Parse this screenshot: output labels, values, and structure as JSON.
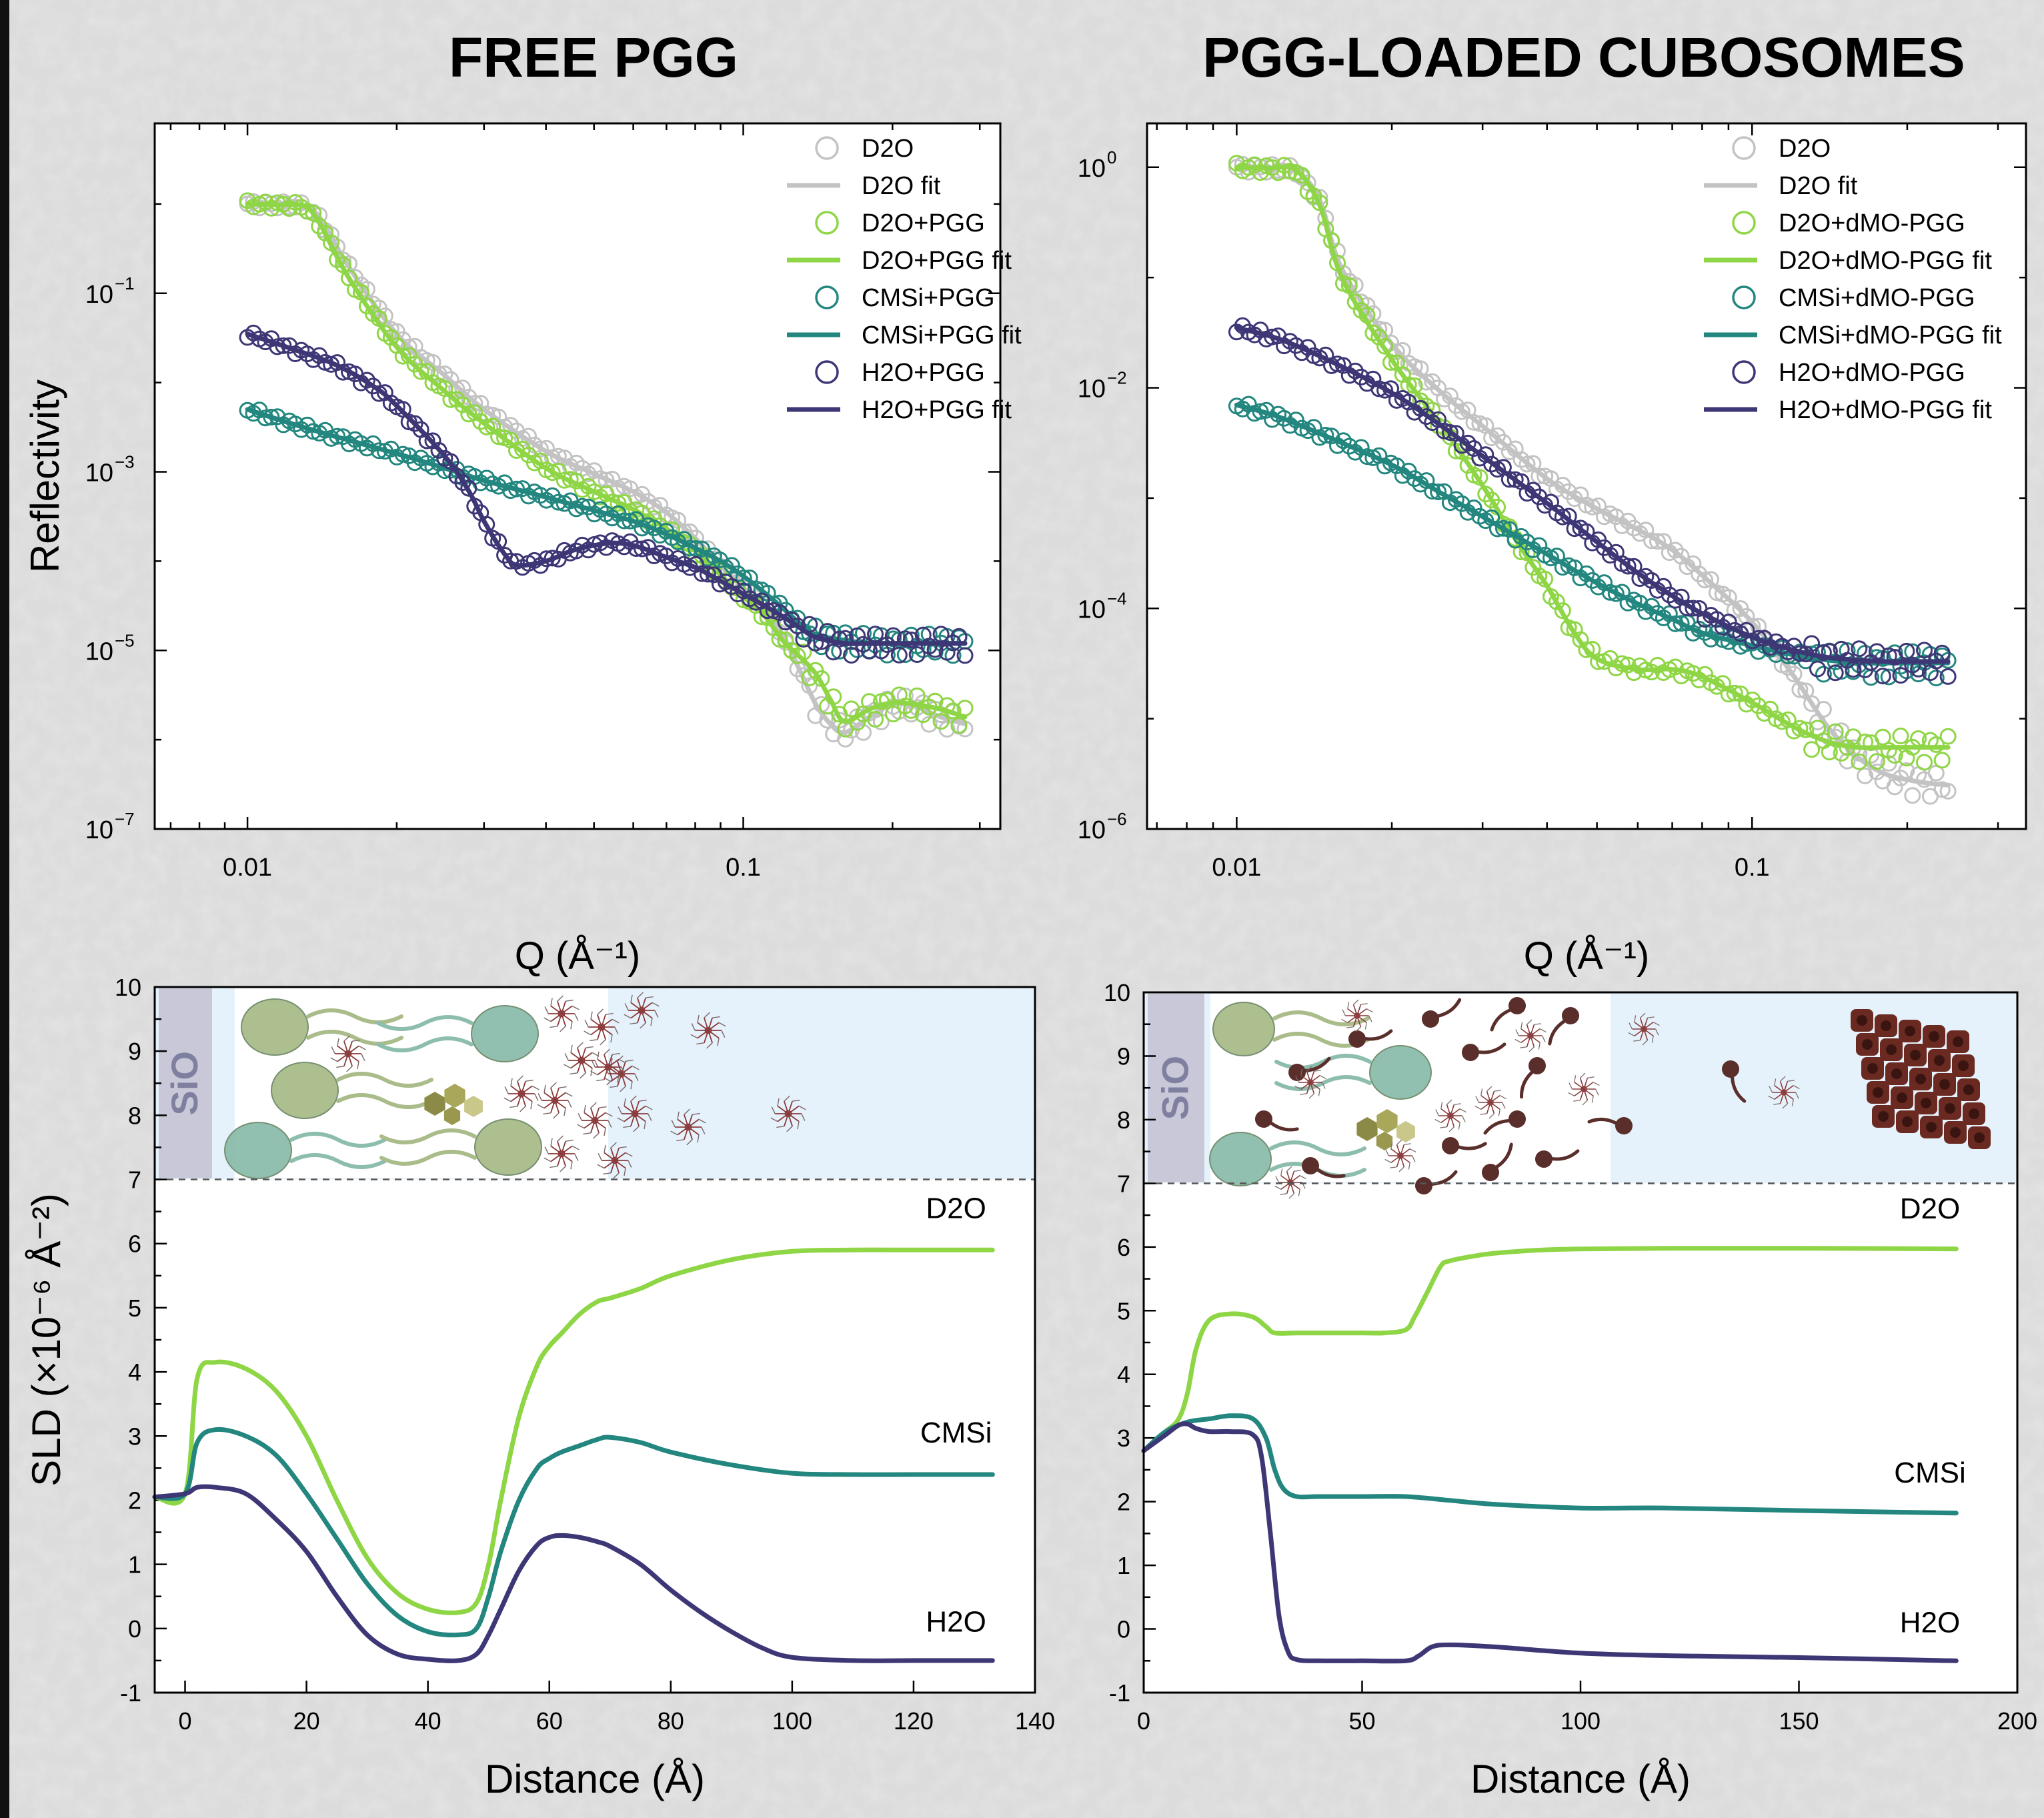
{
  "panel_titles": [
    "FREE PGG",
    "PGG-LOADED CUBOSOMES"
  ],
  "colors": {
    "d2o": "#c3c3c3",
    "d2o_pgg": "#8fd646",
    "cmsi": "#23877f",
    "h2o": "#3d3776",
    "sio2": "#c8c8d8",
    "sio2_text": "#7f7f9f",
    "lipid_green": "#a9bc8a",
    "lipid_teal": "#8cbdad",
    "pgg_red": "#8a3a3a",
    "dmo_brown": "#5a2e2a",
    "water": "#e6f2fb",
    "cube": "#6a2a22"
  },
  "chart_data": [
    {
      "type": "scatter",
      "title": "FREE PGG",
      "xlabel": "Q (Å⁻¹)",
      "ylabel": "Reflectivity",
      "xscale": "log",
      "yscale": "log",
      "xlim": [
        0.0065,
        0.33
      ],
      "ylim": [
        1e-07,
        8
      ],
      "xticks": [
        {
          "value": 0.01,
          "label": "0.01"
        },
        {
          "value": 0.1,
          "label": "0.1"
        }
      ],
      "yticks": [
        {
          "exp": -1,
          "base": "10",
          "sup": "−1"
        },
        {
          "exp": -3,
          "base": "10",
          "sup": "−3"
        },
        {
          "exp": -5,
          "base": "10",
          "sup": "−5"
        },
        {
          "exp": -7,
          "base": "10",
          "sup": "−7"
        }
      ],
      "legend_position": "top-right",
      "legend": [
        {
          "label": "D2O",
          "color": "d2o",
          "kind": "marker"
        },
        {
          "label": "D2O fit",
          "color": "d2o",
          "kind": "line"
        },
        {
          "label": "D2O+PGG",
          "color": "d2o_pgg",
          "kind": "marker"
        },
        {
          "label": "D2O+PGG fit",
          "color": "d2o_pgg",
          "kind": "line"
        },
        {
          "label": "CMSi+PGG",
          "color": "cmsi",
          "kind": "marker"
        },
        {
          "label": "CMSi+PGG fit",
          "color": "cmsi",
          "kind": "line"
        },
        {
          "label": "H2O+PGG",
          "color": "h2o",
          "kind": "marker"
        },
        {
          "label": "H2O+PGG fit",
          "color": "h2o",
          "kind": "line"
        }
      ],
      "series": [
        {
          "name": "D2O",
          "color": "d2o",
          "x": [
            0.01,
            0.0115,
            0.013,
            0.014,
            0.016,
            0.02,
            0.025,
            0.03,
            0.04,
            0.05,
            0.06,
            0.07,
            0.08,
            0.09,
            0.1,
            0.11,
            0.12,
            0.13,
            0.14,
            0.15,
            0.16,
            0.18,
            0.2,
            0.22,
            0.25,
            0.28
          ],
          "y": [
            1.0,
            0.98,
            0.95,
            0.7,
            0.2,
            0.035,
            0.012,
            0.005,
            0.0017,
            0.00095,
            0.0006,
            0.00035,
            0.00018,
            9e-05,
            5e-05,
            3e-05,
            1.5e-05,
            6e-06,
            2.5e-06,
            1.5e-06,
            1.2e-06,
            1.8e-06,
            2.5e-06,
            2.4e-06,
            1.8e-06,
            1.5e-06
          ]
        },
        {
          "name": "D2O+PGG",
          "color": "d2o_pgg",
          "x": [
            0.01,
            0.0115,
            0.013,
            0.014,
            0.016,
            0.02,
            0.025,
            0.03,
            0.04,
            0.05,
            0.06,
            0.07,
            0.08,
            0.09,
            0.1,
            0.11,
            0.12,
            0.13,
            0.14,
            0.15,
            0.16,
            0.18,
            0.2,
            0.22,
            0.25,
            0.28
          ],
          "y": [
            1.0,
            0.98,
            0.95,
            0.6,
            0.15,
            0.025,
            0.008,
            0.0035,
            0.0011,
            0.0006,
            0.00038,
            0.00023,
            0.00013,
            7e-05,
            4e-05,
            2.5e-05,
            1.3e-05,
            8.5e-06,
            5.5e-06,
            2.8e-06,
            1.6e-06,
            2.2e-06,
            2.6e-06,
            2.5e-06,
            2.2e-06,
            1.8e-06
          ]
        },
        {
          "name": "CMSi+PGG",
          "color": "cmsi",
          "x": [
            0.01,
            0.012,
            0.015,
            0.02,
            0.025,
            0.03,
            0.04,
            0.05,
            0.06,
            0.07,
            0.08,
            0.09,
            0.1,
            0.11,
            0.12,
            0.13,
            0.14,
            0.16,
            0.18,
            0.2,
            0.22,
            0.25,
            0.28
          ],
          "y": [
            0.005,
            0.0036,
            0.0025,
            0.0016,
            0.0011,
            0.0008,
            0.00052,
            0.00037,
            0.00028,
            0.0002,
            0.00014,
            0.0001,
            6.8e-05,
            4.5e-05,
            3e-05,
            2e-05,
            1.5e-05,
            1.3e-05,
            1.2e-05,
            1.2e-05,
            1.2e-05,
            1.2e-05,
            1.2e-05
          ]
        },
        {
          "name": "H2O+PGG",
          "color": "h2o",
          "x": [
            0.01,
            0.012,
            0.015,
            0.018,
            0.02,
            0.025,
            0.028,
            0.03,
            0.033,
            0.035,
            0.04,
            0.045,
            0.05,
            0.055,
            0.06,
            0.065,
            0.07,
            0.08,
            0.09,
            0.1,
            0.11,
            0.12,
            0.13,
            0.14,
            0.16,
            0.18,
            0.2,
            0.22,
            0.25,
            0.28
          ],
          "y": [
            0.035,
            0.025,
            0.016,
            0.009,
            0.0055,
            0.0015,
            0.0006,
            0.00028,
            0.00012,
            9e-05,
            0.0001,
            0.00013,
            0.00015,
            0.00016,
            0.00015,
            0.00013,
            0.00011,
            8.5e-05,
            6e-05,
            4.3e-05,
            3.2e-05,
            2.4e-05,
            1.8e-05,
            1.4e-05,
            1.2e-05,
            1.2e-05,
            1.2e-05,
            1.2e-05,
            1.2e-05,
            1.2e-05
          ]
        }
      ]
    },
    {
      "type": "scatter",
      "title": "PGG-LOADED CUBOSOMES",
      "xlabel": "Q (Å⁻¹)",
      "ylabel": "",
      "xscale": "log",
      "yscale": "log",
      "xlim": [
        0.0067,
        0.34
      ],
      "ylim": [
        1e-06,
        2.5
      ],
      "xticks": [
        {
          "value": 0.01,
          "label": "0.01"
        },
        {
          "value": 0.1,
          "label": "0.1"
        }
      ],
      "yticks": [
        {
          "exp": 0,
          "base": "10",
          "sup": "0"
        },
        {
          "exp": -2,
          "base": "10",
          "sup": "−2"
        },
        {
          "exp": -4,
          "base": "10",
          "sup": "−4"
        },
        {
          "exp": -6,
          "base": "10",
          "sup": "−6"
        }
      ],
      "legend_position": "top-right",
      "legend": [
        {
          "label": "D2O",
          "color": "d2o",
          "kind": "marker"
        },
        {
          "label": "D2O fit",
          "color": "d2o",
          "kind": "line"
        },
        {
          "label": "D2O+dMO-PGG",
          "color": "d2o_pgg",
          "kind": "marker"
        },
        {
          "label": "D2O+dMO-PGG fit",
          "color": "d2o_pgg",
          "kind": "line"
        },
        {
          "label": "CMSi+dMO-PGG",
          "color": "cmsi",
          "kind": "marker"
        },
        {
          "label": "CMSi+dMO-PGG fit",
          "color": "cmsi",
          "kind": "line"
        },
        {
          "label": "H2O+dMO-PGG",
          "color": "h2o",
          "kind": "marker"
        },
        {
          "label": "H2O+dMO-PGG fit",
          "color": "h2o",
          "kind": "line"
        }
      ],
      "series": [
        {
          "name": "D2O",
          "color": "d2o",
          "x": [
            0.01,
            0.0115,
            0.013,
            0.0145,
            0.016,
            0.02,
            0.025,
            0.03,
            0.04,
            0.05,
            0.06,
            0.07,
            0.08,
            0.1,
            0.12,
            0.14,
            0.16,
            0.18,
            0.2,
            0.22,
            0.24
          ],
          "y": [
            1.0,
            0.98,
            0.95,
            0.5,
            0.12,
            0.025,
            0.009,
            0.0045,
            0.0015,
            0.0008,
            0.00052,
            0.00034,
            0.0002,
            7.5e-05,
            2.5e-05,
            8.5e-06,
            4.5e-06,
            3.2e-06,
            2.8e-06,
            2.6e-06,
            2.5e-06
          ]
        },
        {
          "name": "D2O+dMO-PGG",
          "color": "d2o_pgg",
          "x": [
            0.01,
            0.0115,
            0.013,
            0.0145,
            0.016,
            0.02,
            0.025,
            0.03,
            0.035,
            0.04,
            0.045,
            0.05,
            0.06,
            0.07,
            0.08,
            0.1,
            0.12,
            0.14,
            0.16,
            0.18,
            0.2,
            0.22,
            0.24
          ],
          "y": [
            1.0,
            0.98,
            0.95,
            0.45,
            0.1,
            0.018,
            0.0045,
            0.0013,
            0.0004,
            0.00016,
            6.2e-05,
            3.5e-05,
            2.8e-05,
            2.8e-05,
            2.4e-05,
            1.4e-05,
            8.5e-06,
            6.2e-06,
            5.5e-06,
            5.5e-06,
            5.5e-06,
            5.5e-06,
            5.5e-06
          ]
        },
        {
          "name": "CMSi+dMO-PGG",
          "color": "cmsi",
          "x": [
            0.01,
            0.012,
            0.015,
            0.02,
            0.025,
            0.03,
            0.04,
            0.05,
            0.06,
            0.07,
            0.08,
            0.1,
            0.12,
            0.14,
            0.16,
            0.18,
            0.2,
            0.22,
            0.24
          ],
          "y": [
            0.007,
            0.0055,
            0.0036,
            0.002,
            0.0011,
            0.00068,
            0.00031,
            0.00017,
            0.00011,
            8e-05,
            6e-05,
            4.6e-05,
            3.8e-05,
            3.4e-05,
            3.2e-05,
            3.2e-05,
            3.2e-05,
            3.2e-05,
            3.2e-05
          ]
        },
        {
          "name": "H2O+dMO-PGG",
          "color": "h2o",
          "x": [
            0.01,
            0.012,
            0.015,
            0.02,
            0.025,
            0.03,
            0.04,
            0.05,
            0.06,
            0.07,
            0.08,
            0.1,
            0.12,
            0.14,
            0.16,
            0.18,
            0.2,
            0.22,
            0.24
          ],
          "y": [
            0.035,
            0.028,
            0.018,
            0.009,
            0.0045,
            0.0024,
            0.0009,
            0.0004,
            0.00021,
            0.00013,
            9e-05,
            5.5e-05,
            4.2e-05,
            3.6e-05,
            3.4e-05,
            3.3e-05,
            3.3e-05,
            3.3e-05,
            3.3e-05
          ]
        }
      ]
    },
    {
      "type": "line",
      "xlabel": "Distance (Å)",
      "ylabel": "SLD (×10⁻⁶ Å⁻²)",
      "xlim": [
        -5,
        140
      ],
      "ylim": [
        -1,
        10
      ],
      "xticks": [
        0,
        20,
        40,
        60,
        80,
        100,
        120,
        140
      ],
      "yticks": [
        -1,
        0,
        1,
        2,
        3,
        4,
        5,
        6,
        7,
        8,
        9,
        10
      ],
      "threshold_line": 7,
      "series": [
        {
          "name": "D2O",
          "color": "d2o_pgg",
          "x": [
            -5,
            0,
            2,
            5,
            10,
            15,
            20,
            25,
            30,
            35,
            40,
            45,
            48,
            50,
            52,
            55,
            58,
            60,
            62,
            65,
            68,
            70,
            75,
            80,
            90,
            100,
            110,
            120,
            133
          ],
          "y": [
            2.05,
            2.1,
            3.9,
            4.15,
            4.05,
            3.7,
            3.0,
            2.0,
            1.1,
            0.55,
            0.3,
            0.25,
            0.4,
            1.0,
            2.0,
            3.3,
            4.1,
            4.4,
            4.6,
            4.9,
            5.1,
            5.15,
            5.3,
            5.5,
            5.75,
            5.88,
            5.9,
            5.9,
            5.9
          ]
        },
        {
          "name": "CMSi",
          "color": "cmsi",
          "x": [
            -5,
            0,
            2,
            5,
            10,
            15,
            20,
            25,
            30,
            35,
            40,
            45,
            48,
            50,
            52,
            55,
            58,
            60,
            62,
            65,
            68,
            70,
            75,
            80,
            90,
            100,
            110,
            120,
            133
          ],
          "y": [
            2.05,
            2.1,
            2.9,
            3.1,
            3.0,
            2.7,
            2.1,
            1.4,
            0.7,
            0.2,
            -0.05,
            -0.1,
            0.0,
            0.5,
            1.2,
            2.0,
            2.5,
            2.65,
            2.75,
            2.85,
            2.95,
            2.98,
            2.9,
            2.75,
            2.55,
            2.42,
            2.4,
            2.4,
            2.4
          ]
        },
        {
          "name": "H2O",
          "color": "h2o",
          "x": [
            -5,
            0,
            2,
            5,
            10,
            15,
            20,
            25,
            30,
            35,
            40,
            45,
            48,
            50,
            52,
            55,
            58,
            60,
            62,
            65,
            68,
            70,
            75,
            80,
            85,
            90,
            95,
            100,
            110,
            120,
            133
          ],
          "y": [
            2.05,
            2.1,
            2.2,
            2.2,
            2.1,
            1.7,
            1.2,
            0.5,
            -0.1,
            -0.4,
            -0.48,
            -0.5,
            -0.4,
            -0.1,
            0.3,
            0.9,
            1.3,
            1.42,
            1.45,
            1.42,
            1.35,
            1.28,
            1.0,
            0.6,
            0.25,
            -0.05,
            -0.3,
            -0.45,
            -0.5,
            -0.5,
            -0.5
          ]
        }
      ],
      "labels": [
        {
          "text": "D2O",
          "x": 127,
          "y": 6.4
        },
        {
          "text": "CMSi",
          "x": 127,
          "y": 2.9
        },
        {
          "text": "H2O",
          "x": 127,
          "y": -0.05
        }
      ]
    },
    {
      "type": "line",
      "xlabel": "Distance (Å)",
      "ylabel": "",
      "xlim": [
        0,
        200
      ],
      "ylim": [
        -1,
        10
      ],
      "xticks": [
        0,
        50,
        100,
        150,
        200
      ],
      "yticks": [
        -1,
        0,
        1,
        2,
        3,
        4,
        5,
        6,
        7,
        8,
        9,
        10
      ],
      "threshold_line": 7,
      "series": [
        {
          "name": "D2O",
          "color": "d2o_pgg",
          "x": [
            0,
            5,
            8,
            10,
            12,
            15,
            20,
            25,
            28,
            30,
            35,
            40,
            50,
            55,
            60,
            62,
            65,
            68,
            70,
            75,
            80,
            90,
            100,
            120,
            150,
            186
          ],
          "y": [
            2.8,
            3.1,
            3.3,
            3.7,
            4.4,
            4.85,
            4.95,
            4.9,
            4.75,
            4.65,
            4.65,
            4.65,
            4.65,
            4.65,
            4.7,
            4.9,
            5.3,
            5.7,
            5.78,
            5.85,
            5.9,
            5.95,
            5.97,
            5.98,
            5.98,
            5.97
          ]
        },
        {
          "name": "CMSi",
          "color": "cmsi",
          "x": [
            0,
            5,
            10,
            15,
            20,
            25,
            28,
            30,
            32,
            35,
            40,
            50,
            60,
            70,
            80,
            100,
            120,
            150,
            186
          ],
          "y": [
            2.8,
            3.1,
            3.25,
            3.3,
            3.35,
            3.3,
            3.0,
            2.5,
            2.2,
            2.08,
            2.08,
            2.08,
            2.08,
            2.02,
            1.96,
            1.9,
            1.9,
            1.86,
            1.82
          ]
        },
        {
          "name": "H2O",
          "color": "h2o",
          "x": [
            0,
            5,
            8,
            10,
            12,
            15,
            20,
            25,
            27,
            29,
            31,
            33,
            35,
            40,
            50,
            60,
            63,
            66,
            70,
            80,
            100,
            120,
            150,
            186
          ],
          "y": [
            2.8,
            3.05,
            3.2,
            3.22,
            3.15,
            3.1,
            3.1,
            3.05,
            2.7,
            1.5,
            0.2,
            -0.35,
            -0.48,
            -0.5,
            -0.5,
            -0.5,
            -0.42,
            -0.28,
            -0.25,
            -0.28,
            -0.38,
            -0.42,
            -0.45,
            -0.5
          ]
        }
      ],
      "labels": [
        {
          "text": "D2O",
          "x": 180,
          "y": 6.45
        },
        {
          "text": "CMSi",
          "x": 180,
          "y": 2.3
        },
        {
          "text": "H2O",
          "x": 180,
          "y": -0.05
        }
      ]
    }
  ],
  "sio2_label": "SiO2"
}
